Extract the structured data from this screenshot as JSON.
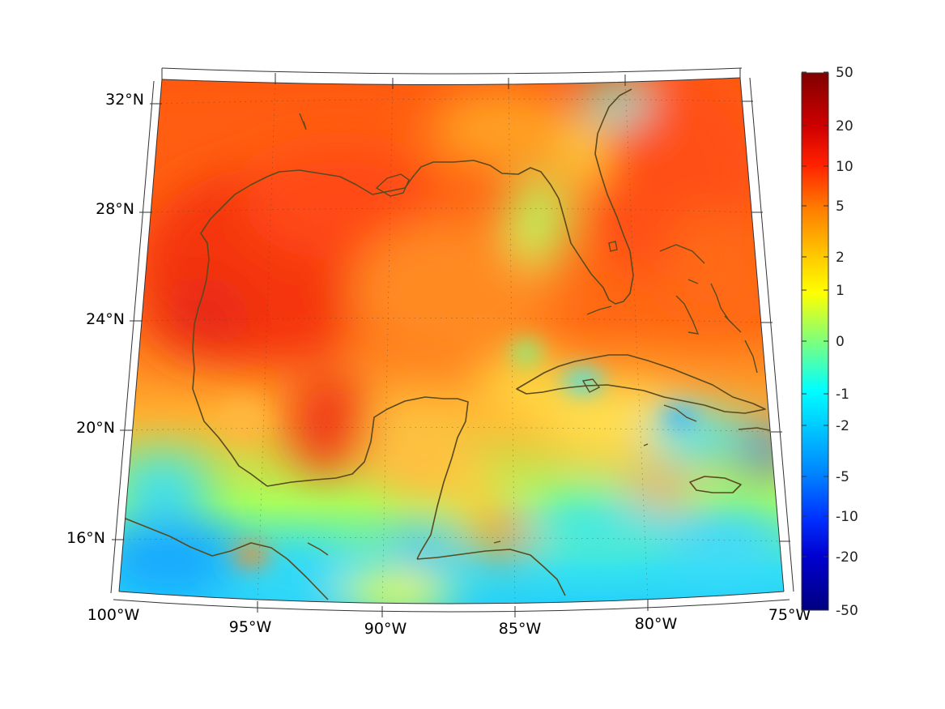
{
  "map": {
    "lon_labels": [
      "100°W",
      "95°W",
      "90°W",
      "85°W",
      "80°W",
      "75°W"
    ],
    "lat_labels": [
      "32°N",
      "28°N",
      "24°N",
      "20°N",
      "16°N"
    ],
    "extent": {
      "lon": [
        -100,
        -75
      ],
      "lat": [
        14.5,
        33
      ]
    },
    "colormap": "jet",
    "features": [
      "Gulf of Mexico",
      "Florida",
      "Yucatan Peninsula",
      "Cuba",
      "Jamaica",
      "Hispaniola",
      "Bahamas",
      "Central America coast"
    ]
  },
  "colorbar": {
    "ticks": [
      "50",
      "20",
      "10",
      "5",
      "2",
      "1",
      "0",
      "-1",
      "-2",
      "-5",
      "-10",
      "-20",
      "-50"
    ],
    "range": [
      -50,
      50
    ],
    "colors": [
      "#800000",
      "#ff0000",
      "#ff8000",
      "#ffff00",
      "#80ff80",
      "#00ffff",
      "#0080ff",
      "#0000ff",
      "#000080"
    ]
  }
}
